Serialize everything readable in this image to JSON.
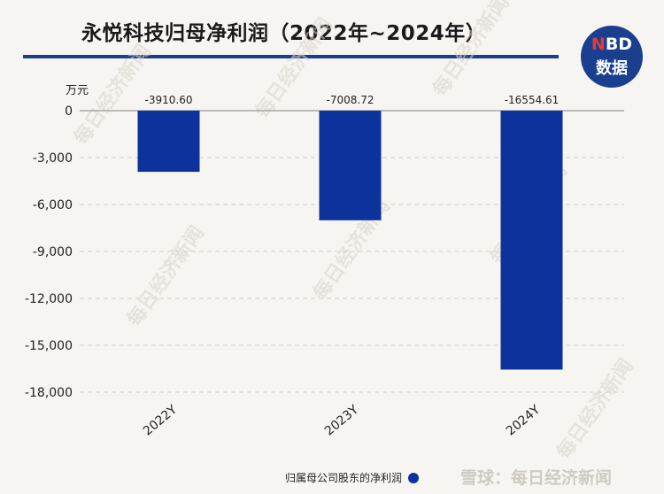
{
  "header": {
    "title": "永悦科技归母净利润（2022年~2024年）",
    "logo_line1": "NBD",
    "logo_line2": "数据"
  },
  "watermark": {
    "diagonal_text": "每日经济新闻",
    "footer_text": "雪球：每日经济新闻"
  },
  "colors": {
    "bar": "#0c339c",
    "title_rule": "#1b3f8f",
    "background": "#f7f5f1"
  },
  "chart_data": {
    "type": "bar",
    "title": "",
    "ylabel": "万元",
    "xlabel": "",
    "categories": [
      "2022Y",
      "2023Y",
      "2024Y"
    ],
    "series": [
      {
        "name": "归属母公司股东的净利润",
        "values": [
          -3910.6,
          -7008.72,
          -16554.61
        ],
        "labels": [
          "-3910.60",
          "-7008.72",
          "-16554.61"
        ]
      }
    ],
    "ylim": [
      -18000,
      0
    ],
    "yticks": [
      0,
      -3000,
      -6000,
      -9000,
      -12000,
      -15000,
      -18000
    ],
    "ytick_labels": [
      "0",
      "-3,000",
      "-6,000",
      "-9,000",
      "-12,000",
      "-15,000",
      "-18,000"
    ],
    "grid": true,
    "legend_position": "bottom-right"
  }
}
